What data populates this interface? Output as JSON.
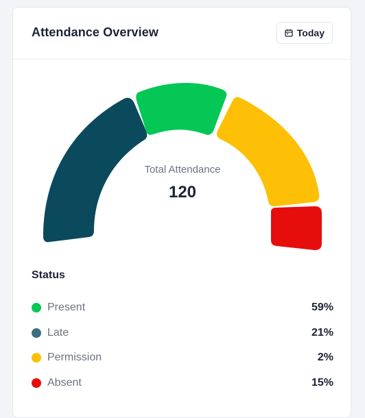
{
  "card": {
    "title": "Attendance Overview",
    "date_button": {
      "label": "Today",
      "icon": "calendar-icon"
    }
  },
  "gauge": {
    "center_label": "Total Attendance",
    "center_value": "120",
    "segments": [
      {
        "name": "Late",
        "color": "#0b4a5c"
      },
      {
        "name": "Present",
        "color": "#04c755"
      },
      {
        "name": "Permission",
        "color": "#fdc006"
      },
      {
        "name": "Absent",
        "color": "#e60d0d"
      }
    ]
  },
  "status": {
    "title": "Status",
    "items": [
      {
        "label": "Present",
        "value": "59%",
        "color": "#04c755"
      },
      {
        "label": "Late",
        "value": "21%",
        "color": "#3b6f80"
      },
      {
        "label": "Permission",
        "value": "2%",
        "color": "#fdc006"
      },
      {
        "label": "Absent",
        "value": "15%",
        "color": "#e60d0d"
      }
    ]
  }
}
